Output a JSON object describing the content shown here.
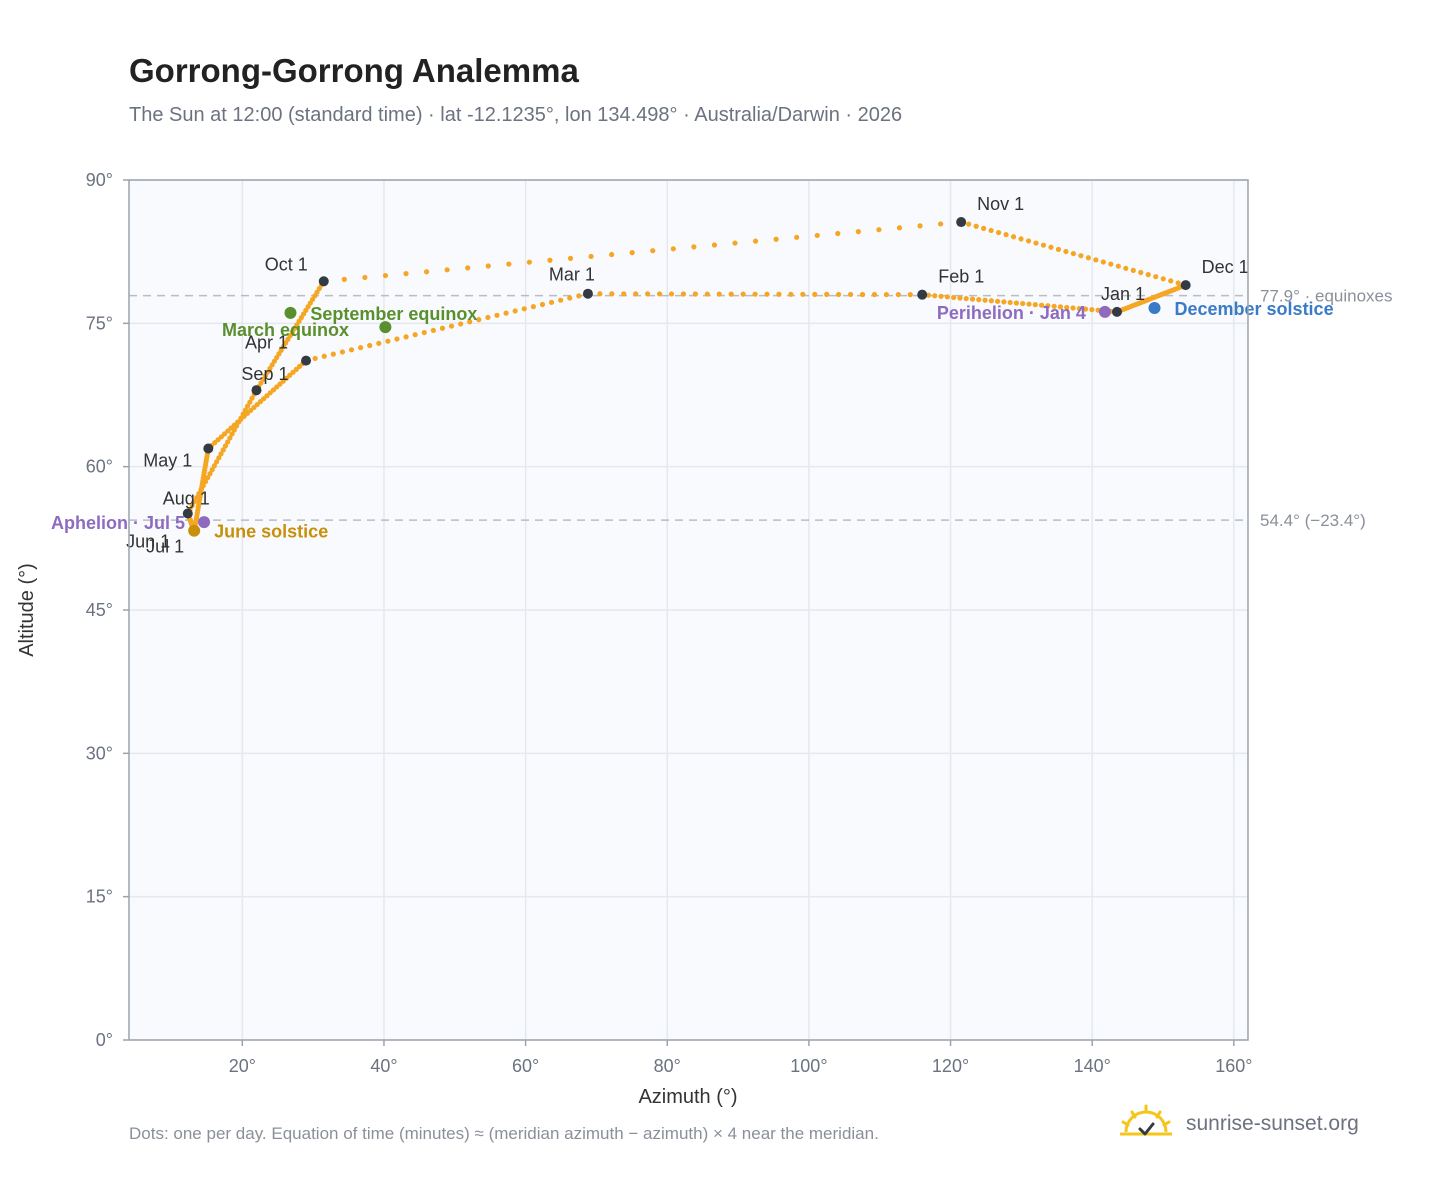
{
  "header": {
    "title": "Gorrong-Gorrong Analemma",
    "subtitle": "The Sun at 12:00 (standard time) · lat -12.1235°, lon 134.498° · Australia/Darwin · 2026"
  },
  "footer": {
    "note": "Dots: one per day. Equation of time (minutes) ≈ (meridian azimuth − azimuth) × 4 near the meridian.",
    "brand": "sunrise-sunset.org",
    "brand_icon": "sun-check-icon"
  },
  "colors": {
    "path": "#f5a623",
    "month_dot": "#333a44",
    "equinox": "#5a8f2e",
    "june_solstice": "#c8900a",
    "december_solstice": "#3a7bc8",
    "apsis": "#8e6bbf",
    "grid": "#e5e8ee",
    "plot_bg": "#f8fafd",
    "reference_line": "#b8bcc4"
  },
  "chart_data": {
    "type": "scatter",
    "xlabel": "Azimuth (°)",
    "ylabel": "Altitude (°)",
    "xlim": [
      4,
      162
    ],
    "ylim": [
      0,
      90
    ],
    "x_ticks": [
      20,
      40,
      60,
      80,
      100,
      120,
      140,
      160
    ],
    "x_tick_labels": [
      "20°",
      "40°",
      "60°",
      "80°",
      "100°",
      "120°",
      "140°",
      "160°"
    ],
    "y_ticks": [
      0,
      15,
      30,
      45,
      60,
      75,
      90
    ],
    "y_tick_labels": [
      "0°",
      "15°",
      "30°",
      "45°",
      "60°",
      "75°",
      "90°"
    ],
    "grid": true,
    "points_per": "day",
    "months": [
      {
        "label": "Jan 1",
        "az": 143.5,
        "alt": 76.2
      },
      {
        "label": "Feb 1",
        "az": 116.0,
        "alt": 78.0
      },
      {
        "label": "Mar 1",
        "az": 68.8,
        "alt": 78.1
      },
      {
        "label": "Apr 1",
        "az": 29.0,
        "alt": 71.1
      },
      {
        "label": "May 1",
        "az": 15.2,
        "alt": 61.9
      },
      {
        "label": "Jun 1",
        "az": 13.2,
        "alt": 53.2
      },
      {
        "label": "Jul 1",
        "az": 13.2,
        "alt": 53.3
      },
      {
        "label": "Aug 1",
        "az": 12.3,
        "alt": 55.1
      },
      {
        "label": "Sep 1",
        "az": 22.0,
        "alt": 68.0
      },
      {
        "label": "Oct 1",
        "az": 31.5,
        "alt": 79.4
      },
      {
        "label": "Nov 1",
        "az": 121.5,
        "alt": 85.6
      },
      {
        "label": "Dec 1",
        "az": 153.2,
        "alt": 79.0
      }
    ],
    "events": [
      {
        "label": "March equinox",
        "az": 26.8,
        "alt": 76.1,
        "kind": "equinox"
      },
      {
        "label": "September equinox",
        "az": 40.2,
        "alt": 74.6,
        "kind": "equinox"
      },
      {
        "label": "June solstice",
        "az": 13.2,
        "alt": 53.3,
        "kind": "june_solstice"
      },
      {
        "label": "December solstice",
        "az": 148.8,
        "alt": 76.6,
        "kind": "december_solstice"
      },
      {
        "label": "Perihelion · Jan 4",
        "az": 141.8,
        "alt": 76.2,
        "kind": "apsis"
      },
      {
        "label": "Aphelion · Jul 5",
        "az": 14.6,
        "alt": 54.2,
        "kind": "apsis"
      }
    ],
    "reference_lines": [
      {
        "alt": 77.9,
        "label": "77.9° · equinoxes"
      },
      {
        "alt": 54.4,
        "label": "54.4° (−23.4°)"
      }
    ]
  }
}
